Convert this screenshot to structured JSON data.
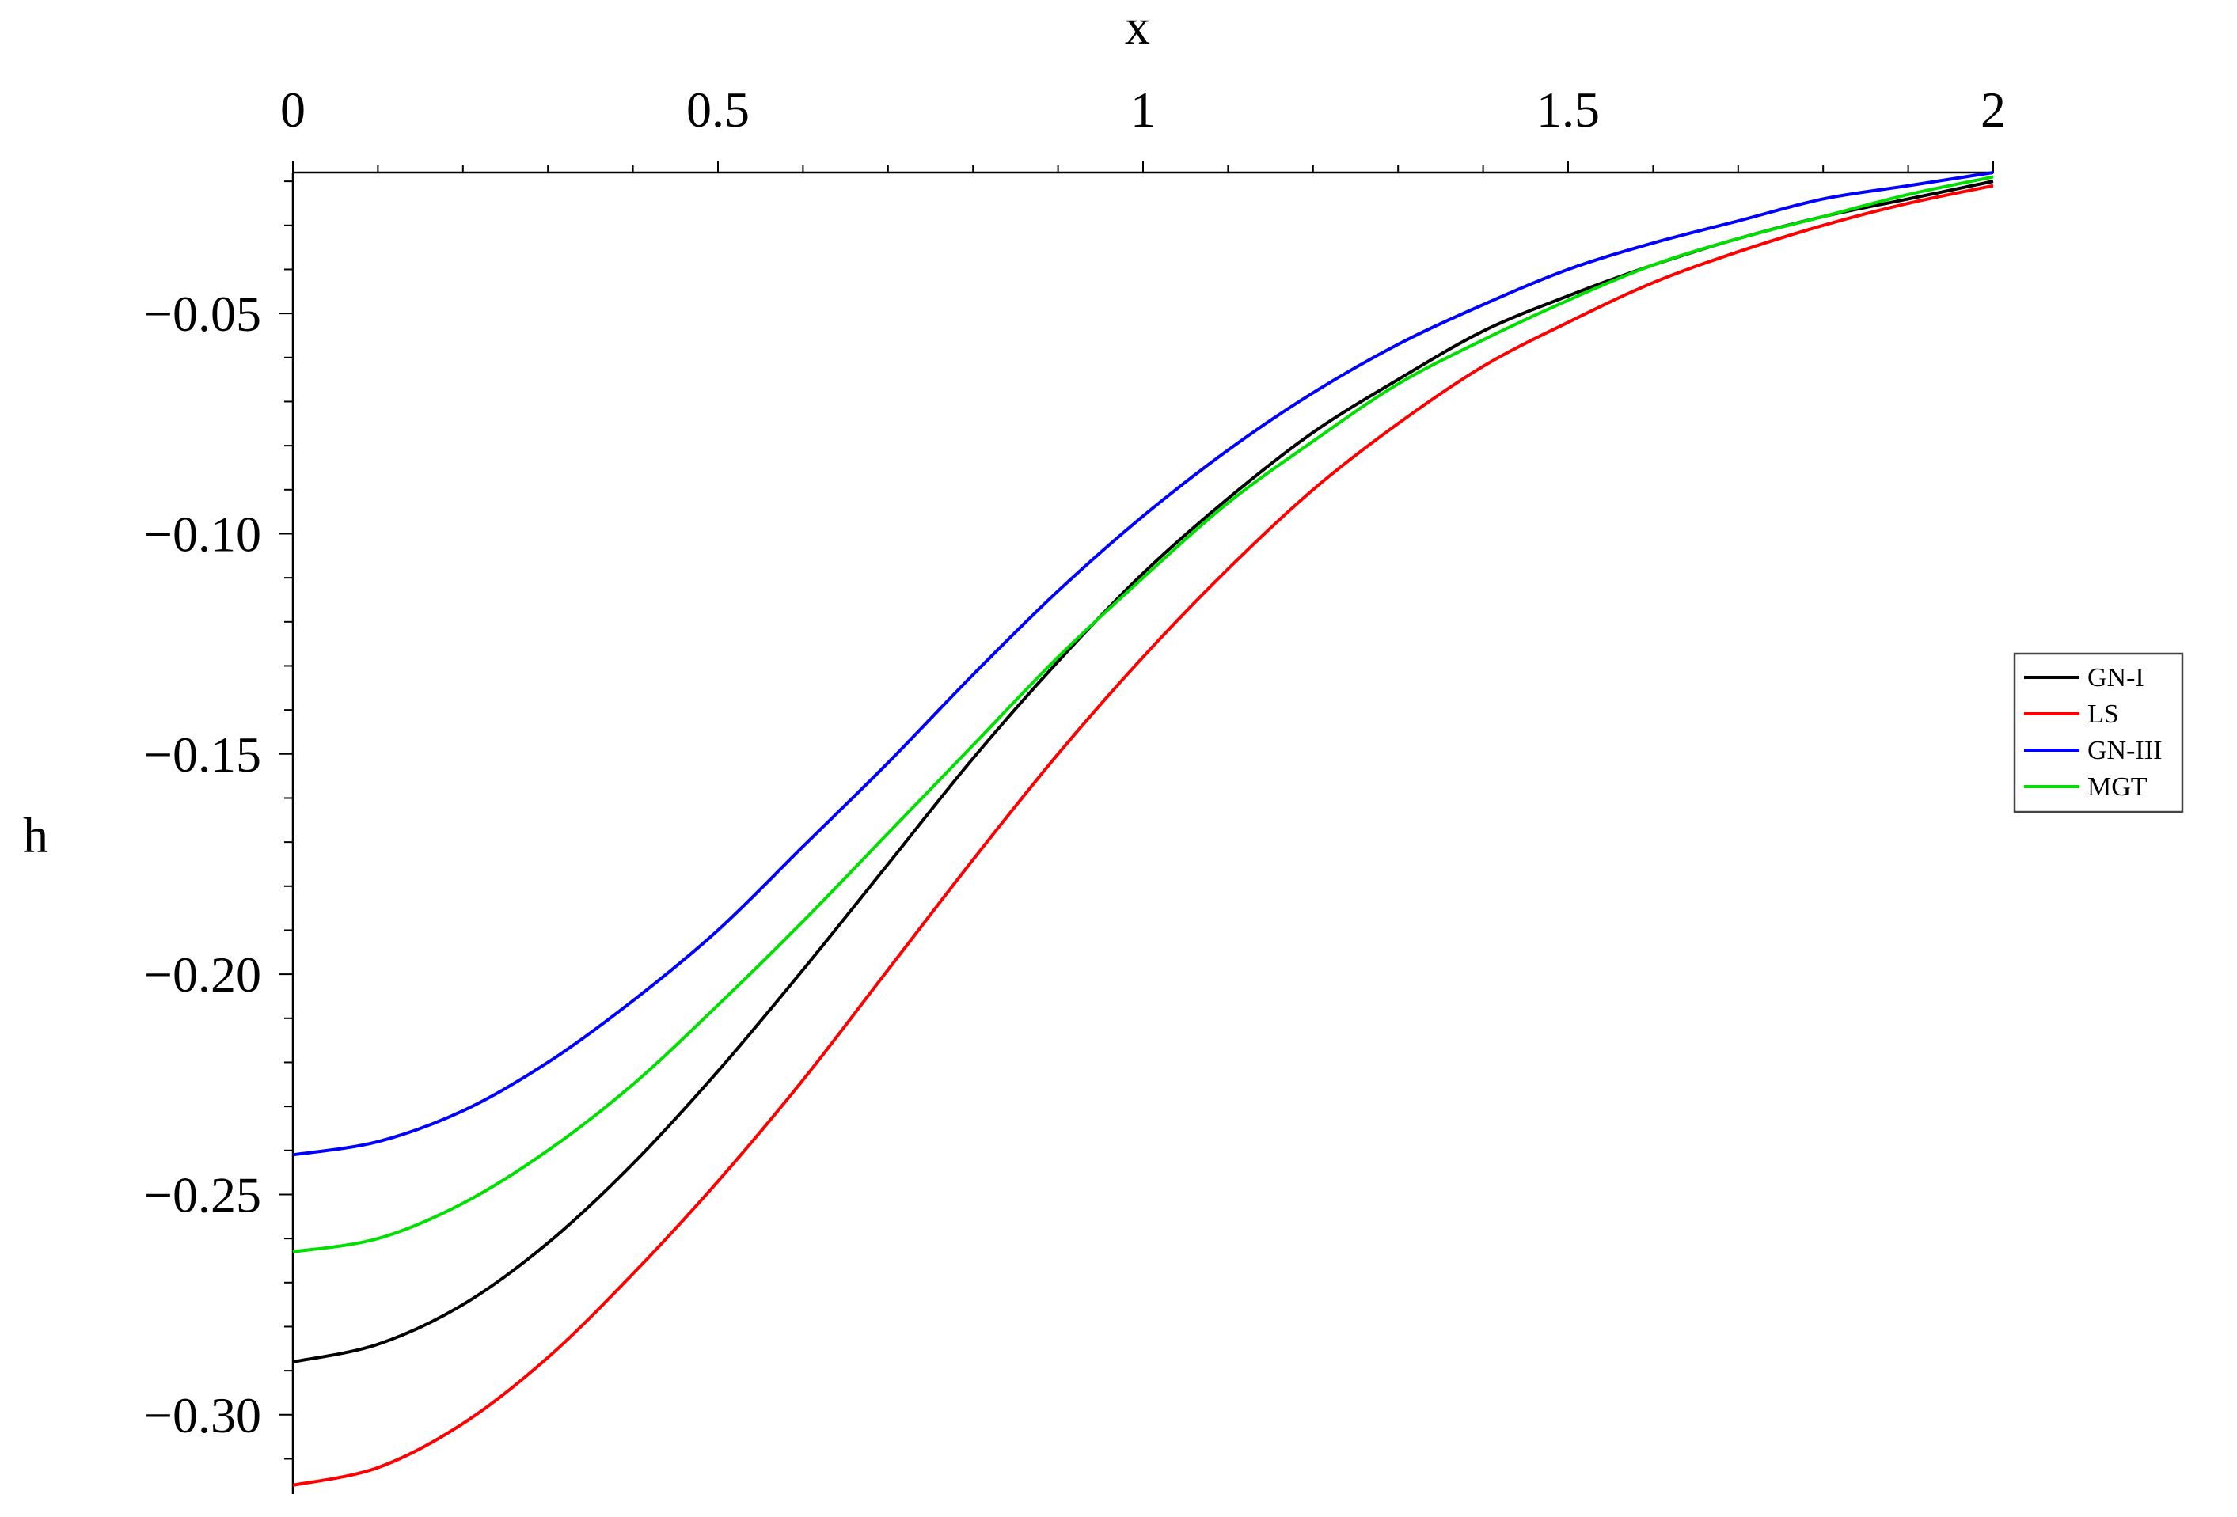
{
  "chart_data": {
    "type": "line",
    "xlabel": "x",
    "ylabel": "h",
    "xlim": [
      0,
      2
    ],
    "ylim": [
      -0.318,
      -0.018
    ],
    "x_ticks": [
      0,
      0.5,
      1,
      1.5,
      2
    ],
    "x_tick_labels": [
      "0",
      "0.5",
      "1",
      "1.5",
      "2"
    ],
    "y_ticks": [
      -0.05,
      -0.1,
      -0.15,
      -0.2,
      -0.25,
      -0.3
    ],
    "y_tick_labels": [
      "−0.05",
      "−0.10",
      "−0.15",
      "−0.20",
      "−0.25",
      "−0.30"
    ],
    "x_axis_position": "top",
    "grid": false,
    "legend_position": "right",
    "x": [
      0,
      0.1,
      0.2,
      0.3,
      0.4,
      0.5,
      0.6,
      0.7,
      0.8,
      0.9,
      1.0,
      1.1,
      1.2,
      1.3,
      1.4,
      1.5,
      1.6,
      1.7,
      1.8,
      1.9,
      2.0
    ],
    "series": [
      {
        "name": "GN-I",
        "color": "#000000",
        "values": [
          -0.288,
          -0.284,
          -0.275,
          -0.261,
          -0.243,
          -0.222,
          -0.199,
          -0.175,
          -0.151,
          -0.129,
          -0.109,
          -0.092,
          -0.077,
          -0.065,
          -0.054,
          -0.046,
          -0.039,
          -0.033,
          -0.028,
          -0.024,
          -0.02
        ]
      },
      {
        "name": "LS",
        "color": "#ff0000",
        "values": [
          -0.316,
          -0.312,
          -0.302,
          -0.287,
          -0.268,
          -0.247,
          -0.224,
          -0.199,
          -0.174,
          -0.15,
          -0.128,
          -0.108,
          -0.09,
          -0.075,
          -0.062,
          -0.052,
          -0.043,
          -0.036,
          -0.03,
          -0.025,
          -0.021
        ]
      },
      {
        "name": "GN-III",
        "color": "#0000ff",
        "values": [
          -0.241,
          -0.238,
          -0.231,
          -0.22,
          -0.206,
          -0.19,
          -0.171,
          -0.152,
          -0.132,
          -0.113,
          -0.096,
          -0.081,
          -0.068,
          -0.057,
          -0.048,
          -0.04,
          -0.034,
          -0.029,
          -0.024,
          -0.021,
          -0.018
        ]
      },
      {
        "name": "MGT",
        "color": "#00e000",
        "values": [
          -0.263,
          -0.26,
          -0.252,
          -0.24,
          -0.225,
          -0.207,
          -0.188,
          -0.168,
          -0.148,
          -0.128,
          -0.11,
          -0.093,
          -0.079,
          -0.066,
          -0.056,
          -0.047,
          -0.039,
          -0.033,
          -0.028,
          -0.023,
          -0.019
        ]
      }
    ]
  }
}
